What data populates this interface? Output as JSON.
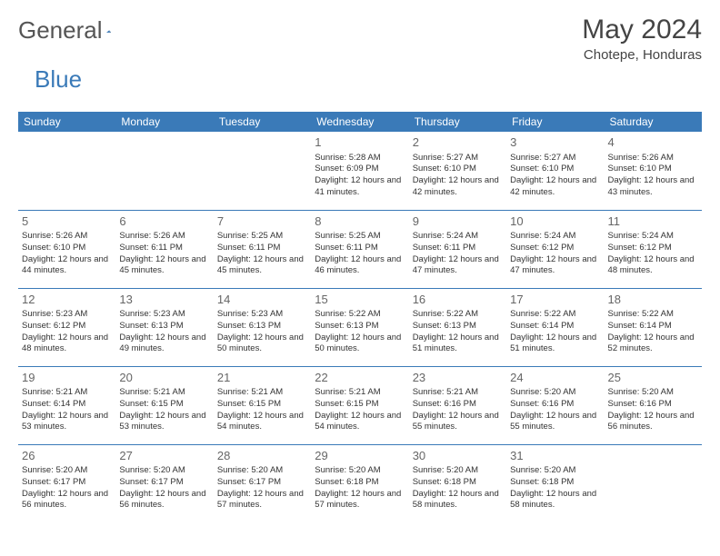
{
  "brand": {
    "part1": "General",
    "part2": "Blue"
  },
  "title": {
    "month": "May 2024",
    "location": "Chotepe, Honduras"
  },
  "colors": {
    "accent": "#3a7ab8",
    "text": "#333333",
    "muted": "#666666",
    "bg": "#ffffff"
  },
  "calendar": {
    "columns": [
      "Sunday",
      "Monday",
      "Tuesday",
      "Wednesday",
      "Thursday",
      "Friday",
      "Saturday"
    ],
    "col_width_pct": 14.28,
    "head_fontsize": 12,
    "cell_fontsize": 9.5,
    "daynum_fontsize": 13,
    "weeks": [
      [
        {
          "day": "",
          "sunrise": "",
          "sunset": "",
          "daylight": ""
        },
        {
          "day": "",
          "sunrise": "",
          "sunset": "",
          "daylight": ""
        },
        {
          "day": "",
          "sunrise": "",
          "sunset": "",
          "daylight": ""
        },
        {
          "day": "1",
          "sunrise": "Sunrise: 5:28 AM",
          "sunset": "Sunset: 6:09 PM",
          "daylight": "Daylight: 12 hours and 41 minutes."
        },
        {
          "day": "2",
          "sunrise": "Sunrise: 5:27 AM",
          "sunset": "Sunset: 6:10 PM",
          "daylight": "Daylight: 12 hours and 42 minutes."
        },
        {
          "day": "3",
          "sunrise": "Sunrise: 5:27 AM",
          "sunset": "Sunset: 6:10 PM",
          "daylight": "Daylight: 12 hours and 42 minutes."
        },
        {
          "day": "4",
          "sunrise": "Sunrise: 5:26 AM",
          "sunset": "Sunset: 6:10 PM",
          "daylight": "Daylight: 12 hours and 43 minutes."
        }
      ],
      [
        {
          "day": "5",
          "sunrise": "Sunrise: 5:26 AM",
          "sunset": "Sunset: 6:10 PM",
          "daylight": "Daylight: 12 hours and 44 minutes."
        },
        {
          "day": "6",
          "sunrise": "Sunrise: 5:26 AM",
          "sunset": "Sunset: 6:11 PM",
          "daylight": "Daylight: 12 hours and 45 minutes."
        },
        {
          "day": "7",
          "sunrise": "Sunrise: 5:25 AM",
          "sunset": "Sunset: 6:11 PM",
          "daylight": "Daylight: 12 hours and 45 minutes."
        },
        {
          "day": "8",
          "sunrise": "Sunrise: 5:25 AM",
          "sunset": "Sunset: 6:11 PM",
          "daylight": "Daylight: 12 hours and 46 minutes."
        },
        {
          "day": "9",
          "sunrise": "Sunrise: 5:24 AM",
          "sunset": "Sunset: 6:11 PM",
          "daylight": "Daylight: 12 hours and 47 minutes."
        },
        {
          "day": "10",
          "sunrise": "Sunrise: 5:24 AM",
          "sunset": "Sunset: 6:12 PM",
          "daylight": "Daylight: 12 hours and 47 minutes."
        },
        {
          "day": "11",
          "sunrise": "Sunrise: 5:24 AM",
          "sunset": "Sunset: 6:12 PM",
          "daylight": "Daylight: 12 hours and 48 minutes."
        }
      ],
      [
        {
          "day": "12",
          "sunrise": "Sunrise: 5:23 AM",
          "sunset": "Sunset: 6:12 PM",
          "daylight": "Daylight: 12 hours and 48 minutes."
        },
        {
          "day": "13",
          "sunrise": "Sunrise: 5:23 AM",
          "sunset": "Sunset: 6:13 PM",
          "daylight": "Daylight: 12 hours and 49 minutes."
        },
        {
          "day": "14",
          "sunrise": "Sunrise: 5:23 AM",
          "sunset": "Sunset: 6:13 PM",
          "daylight": "Daylight: 12 hours and 50 minutes."
        },
        {
          "day": "15",
          "sunrise": "Sunrise: 5:22 AM",
          "sunset": "Sunset: 6:13 PM",
          "daylight": "Daylight: 12 hours and 50 minutes."
        },
        {
          "day": "16",
          "sunrise": "Sunrise: 5:22 AM",
          "sunset": "Sunset: 6:13 PM",
          "daylight": "Daylight: 12 hours and 51 minutes."
        },
        {
          "day": "17",
          "sunrise": "Sunrise: 5:22 AM",
          "sunset": "Sunset: 6:14 PM",
          "daylight": "Daylight: 12 hours and 51 minutes."
        },
        {
          "day": "18",
          "sunrise": "Sunrise: 5:22 AM",
          "sunset": "Sunset: 6:14 PM",
          "daylight": "Daylight: 12 hours and 52 minutes."
        }
      ],
      [
        {
          "day": "19",
          "sunrise": "Sunrise: 5:21 AM",
          "sunset": "Sunset: 6:14 PM",
          "daylight": "Daylight: 12 hours and 53 minutes."
        },
        {
          "day": "20",
          "sunrise": "Sunrise: 5:21 AM",
          "sunset": "Sunset: 6:15 PM",
          "daylight": "Daylight: 12 hours and 53 minutes."
        },
        {
          "day": "21",
          "sunrise": "Sunrise: 5:21 AM",
          "sunset": "Sunset: 6:15 PM",
          "daylight": "Daylight: 12 hours and 54 minutes."
        },
        {
          "day": "22",
          "sunrise": "Sunrise: 5:21 AM",
          "sunset": "Sunset: 6:15 PM",
          "daylight": "Daylight: 12 hours and 54 minutes."
        },
        {
          "day": "23",
          "sunrise": "Sunrise: 5:21 AM",
          "sunset": "Sunset: 6:16 PM",
          "daylight": "Daylight: 12 hours and 55 minutes."
        },
        {
          "day": "24",
          "sunrise": "Sunrise: 5:20 AM",
          "sunset": "Sunset: 6:16 PM",
          "daylight": "Daylight: 12 hours and 55 minutes."
        },
        {
          "day": "25",
          "sunrise": "Sunrise: 5:20 AM",
          "sunset": "Sunset: 6:16 PM",
          "daylight": "Daylight: 12 hours and 56 minutes."
        }
      ],
      [
        {
          "day": "26",
          "sunrise": "Sunrise: 5:20 AM",
          "sunset": "Sunset: 6:17 PM",
          "daylight": "Daylight: 12 hours and 56 minutes."
        },
        {
          "day": "27",
          "sunrise": "Sunrise: 5:20 AM",
          "sunset": "Sunset: 6:17 PM",
          "daylight": "Daylight: 12 hours and 56 minutes."
        },
        {
          "day": "28",
          "sunrise": "Sunrise: 5:20 AM",
          "sunset": "Sunset: 6:17 PM",
          "daylight": "Daylight: 12 hours and 57 minutes."
        },
        {
          "day": "29",
          "sunrise": "Sunrise: 5:20 AM",
          "sunset": "Sunset: 6:18 PM",
          "daylight": "Daylight: 12 hours and 57 minutes."
        },
        {
          "day": "30",
          "sunrise": "Sunrise: 5:20 AM",
          "sunset": "Sunset: 6:18 PM",
          "daylight": "Daylight: 12 hours and 58 minutes."
        },
        {
          "day": "31",
          "sunrise": "Sunrise: 5:20 AM",
          "sunset": "Sunset: 6:18 PM",
          "daylight": "Daylight: 12 hours and 58 minutes."
        },
        {
          "day": "",
          "sunrise": "",
          "sunset": "",
          "daylight": ""
        }
      ]
    ]
  }
}
